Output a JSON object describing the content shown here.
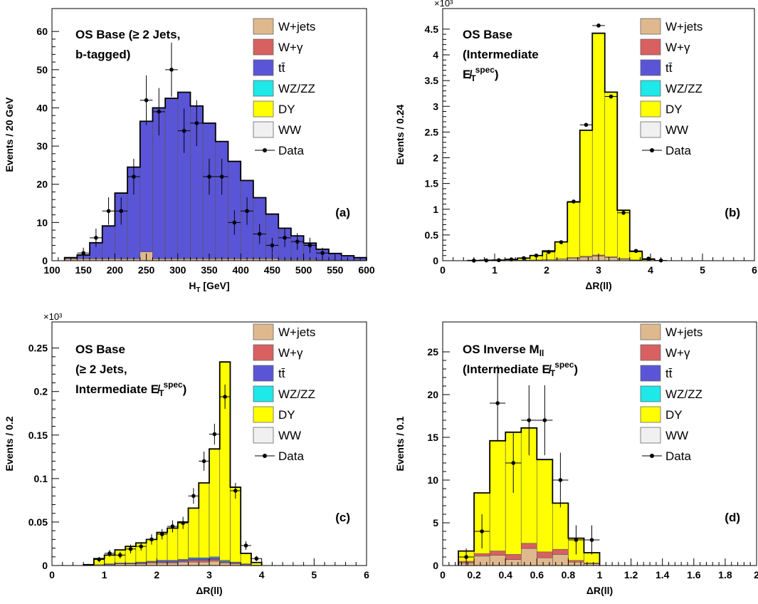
{
  "legend": [
    {
      "key": "wjets",
      "label": "W+jets",
      "color": "#dfb98d"
    },
    {
      "key": "wgamma",
      "label": "W+γ",
      "color": "#d96060"
    },
    {
      "key": "ttbar",
      "label": "tt̄",
      "color": "#5a55d6"
    },
    {
      "key": "wzzz",
      "label": "WZ/ZZ",
      "color": "#1ee8e8"
    },
    {
      "key": "dy",
      "label": "DY",
      "color": "#ffff00"
    },
    {
      "key": "ww",
      "label": "WW",
      "color": "#f0f0f0"
    },
    {
      "key": "data",
      "label": "Data",
      "color": "#000000"
    }
  ],
  "chart_data": [
    {
      "type": "histogram",
      "tag": "(a)",
      "title_lines": [
        "OS Base (≥ 2 Jets,",
        "b-tagged)"
      ],
      "xlabel": "H_T [GeV]",
      "ylabel": "Events / 20 GeV",
      "xlim": [
        100,
        600
      ],
      "ylim": [
        0,
        66
      ],
      "y_exponent": "",
      "xticks": [
        100,
        150,
        200,
        250,
        300,
        350,
        400,
        450,
        500,
        550,
        600
      ],
      "xtick_labels": [
        "100",
        "150",
        "200",
        "250",
        "300",
        "350",
        "400",
        "450",
        "500",
        "550",
        "600"
      ],
      "yticks": [
        0,
        10,
        20,
        30,
        40,
        50,
        60
      ],
      "ytick_labels": [
        "0",
        "10",
        "20",
        "30",
        "40",
        "50",
        "60"
      ],
      "bin_edges": [
        120,
        140,
        160,
        180,
        200,
        220,
        240,
        260,
        280,
        300,
        320,
        340,
        360,
        380,
        400,
        420,
        440,
        460,
        480,
        500,
        520,
        540,
        560,
        580,
        600
      ],
      "stack_order": [
        "wjets",
        "wgamma",
        "ttbar",
        "wzzz",
        "dy",
        "ww"
      ],
      "stacks": {
        "wjets": [
          0.5,
          0.5,
          0.5,
          0.5,
          0.5,
          0.5,
          2.3,
          0.5,
          0.5,
          0.5,
          0.5,
          0.5,
          0.5,
          0.5,
          0.5,
          0.5,
          0.5,
          0.3,
          0.3,
          0.3,
          0.2,
          0.2,
          0.1,
          0.1
        ],
        "wgamma": [
          0,
          0,
          0,
          0,
          0,
          0,
          0,
          0,
          0,
          0,
          0,
          0,
          0,
          0,
          0,
          0,
          0,
          0,
          0,
          0,
          0,
          0,
          0,
          0
        ],
        "ttbar": [
          0.3,
          1.0,
          4.2,
          8.6,
          17.2,
          24.0,
          34.2,
          39.5,
          42.0,
          43.6,
          40.0,
          35.5,
          30.7,
          25.5,
          20.5,
          16.0,
          11.7,
          8.2,
          6.2,
          4.3,
          2.8,
          1.7,
          1.2,
          0.7
        ],
        "wzzz": [
          0,
          0,
          0,
          0,
          0,
          0,
          0,
          0,
          0,
          0,
          0,
          0,
          0,
          0,
          0,
          0,
          0,
          0,
          0,
          0,
          0,
          0,
          0,
          0
        ],
        "dy": [
          0,
          0,
          0,
          0,
          0,
          0,
          0,
          0,
          0,
          0,
          0,
          0,
          0,
          0,
          0,
          0,
          0,
          0,
          0,
          0,
          0,
          0,
          0,
          0
        ],
        "ww": [
          0,
          0,
          0,
          0,
          0,
          0,
          0,
          0,
          0,
          0,
          0,
          0,
          0,
          0,
          0,
          0,
          0,
          0,
          0,
          0,
          0,
          0,
          0,
          0
        ]
      },
      "data_points": {
        "x": [
          150,
          170,
          190,
          210,
          230,
          250,
          270,
          290,
          310,
          330,
          350,
          370,
          390,
          410,
          430,
          450,
          470,
          490,
          510,
          530
        ],
        "y": [
          2,
          6,
          13,
          13,
          22,
          42,
          39,
          50,
          34,
          36,
          22,
          22,
          10,
          13,
          7,
          4,
          6,
          5,
          4,
          2
        ],
        "yerr": [
          1.4,
          2.4,
          3.6,
          3.6,
          4.7,
          6.5,
          6.2,
          7.1,
          5.8,
          6.0,
          4.7,
          4.7,
          3.2,
          3.6,
          2.6,
          2.0,
          2.4,
          2.2,
          2.0,
          1.4
        ]
      }
    },
    {
      "type": "histogram",
      "tag": "(b)",
      "title_lines": [
        "OS Base",
        "(Intermediate",
        "E̸_T^spec)"
      ],
      "xlabel": "ΔR(ll)",
      "ylabel": "Events / 0.24",
      "xlim": [
        0,
        6
      ],
      "ylim": [
        0,
        4.9
      ],
      "y_exponent": "×10³",
      "xticks": [
        0,
        1,
        2,
        3,
        4,
        5,
        6
      ],
      "xtick_labels": [
        "0",
        "1",
        "2",
        "3",
        "4",
        "5",
        "6"
      ],
      "yticks": [
        0,
        0.5,
        1,
        1.5,
        2,
        2.5,
        3,
        3.5,
        4,
        4.5
      ],
      "ytick_labels": [
        "0",
        "0.5",
        "1",
        "1.5",
        "2",
        "2.5",
        "3",
        "3.5",
        "4",
        "4.5"
      ],
      "bin_edges": [
        0.48,
        0.72,
        0.96,
        1.2,
        1.44,
        1.68,
        1.92,
        2.16,
        2.4,
        2.64,
        2.88,
        3.12,
        3.36,
        3.6,
        3.84,
        4.08
      ],
      "stack_order": [
        "wjets",
        "wgamma",
        "ttbar",
        "wzzz",
        "dy",
        "ww"
      ],
      "stacks": {
        "wjets": [
          0,
          0,
          0,
          0.005,
          0.01,
          0.015,
          0.02,
          0.03,
          0.05,
          0.07,
          0.09,
          0.06,
          0.03,
          0.01,
          0
        ],
        "wgamma": [
          0,
          0,
          0,
          0,
          0,
          0,
          0,
          0.005,
          0.01,
          0.015,
          0.02,
          0.015,
          0.01,
          0.005,
          0
        ],
        "ttbar": [
          0,
          0,
          0,
          0,
          0,
          0,
          0,
          0,
          0,
          0,
          0,
          0,
          0,
          0,
          0
        ],
        "wzzz": [
          0,
          0,
          0,
          0,
          0,
          0,
          0,
          0,
          0,
          0,
          0,
          0,
          0,
          0,
          0
        ],
        "dy": [
          0.003,
          0.008,
          0.012,
          0.02,
          0.04,
          0.085,
          0.17,
          0.33,
          1.08,
          2.45,
          4.31,
          3.2,
          0.94,
          0.165,
          0.028
        ],
        "ww": [
          0,
          0,
          0,
          0,
          0,
          0,
          0,
          0,
          0,
          0,
          0,
          0,
          0,
          0,
          0
        ]
      },
      "data_points": {
        "x": [
          0.6,
          0.84,
          1.08,
          1.32,
          1.56,
          1.8,
          2.04,
          2.28,
          2.52,
          2.76,
          3.0,
          3.24,
          3.48,
          3.72,
          3.96,
          4.2
        ],
        "y": [
          0.002,
          0.005,
          0.01,
          0.025,
          0.05,
          0.1,
          0.17,
          0.36,
          1.15,
          2.64,
          4.57,
          3.19,
          0.93,
          0.19,
          0.04,
          0.005
        ],
        "yerr": [
          0,
          0,
          0,
          0,
          0,
          0,
          0,
          0,
          0,
          0,
          0,
          0,
          0,
          0,
          0,
          0
        ]
      }
    },
    {
      "type": "histogram",
      "tag": "(c)",
      "title_lines": [
        "OS Base",
        "(≥ 2 Jets,",
        "Intermediate E̸_T^spec)"
      ],
      "xlabel": "ΔR(ll)",
      "ylabel": "Events / 0.2",
      "xlim": [
        0,
        6
      ],
      "ylim": [
        0,
        0.28
      ],
      "y_exponent": "×10³",
      "xticks": [
        0,
        1,
        2,
        3,
        4,
        5,
        6
      ],
      "xtick_labels": [
        "0",
        "1",
        "2",
        "3",
        "4",
        "5",
        "6"
      ],
      "yticks": [
        0,
        0.05,
        0.1,
        0.15,
        0.2,
        0.25
      ],
      "ytick_labels": [
        "0",
        "0.05",
        "0.1",
        "0.15",
        "0.2",
        "0.25"
      ],
      "bin_edges": [
        0.6,
        0.8,
        1.0,
        1.2,
        1.4,
        1.6,
        1.8,
        2.0,
        2.2,
        2.4,
        2.6,
        2.8,
        3.0,
        3.2,
        3.4,
        3.6,
        3.8,
        4.0
      ],
      "stack_order": [
        "wjets",
        "wgamma",
        "ttbar",
        "wzzz",
        "dy",
        "ww"
      ],
      "stacks": {
        "wjets": [
          0,
          0.001,
          0.001,
          0.002,
          0.002,
          0.002,
          0.003,
          0.003,
          0.003,
          0.004,
          0.004,
          0.004,
          0.005,
          0.003,
          0.002,
          0.001,
          0.0005
        ],
        "wgamma": [
          0,
          0,
          0,
          0,
          0,
          0.001,
          0.001,
          0.001,
          0.001,
          0.001,
          0.002,
          0.002,
          0.002,
          0.001,
          0.001,
          0,
          0
        ],
        "ttbar": [
          0,
          0,
          0.001,
          0.001,
          0.001,
          0.001,
          0.001,
          0.002,
          0.002,
          0.002,
          0.002,
          0.002,
          0.002,
          0.001,
          0.001,
          0.001,
          0
        ],
        "wzzz": [
          0,
          0,
          0,
          0,
          0,
          0,
          0,
          0,
          0,
          0,
          0.001,
          0.001,
          0.001,
          0.001,
          0,
          0,
          0
        ],
        "dy": [
          0.001,
          0.007,
          0.01,
          0.015,
          0.019,
          0.022,
          0.025,
          0.032,
          0.037,
          0.043,
          0.057,
          0.086,
          0.124,
          0.228,
          0.086,
          0.012,
          0.003
        ],
        "ww": [
          0,
          0,
          0,
          0,
          0,
          0,
          0,
          0,
          0,
          0,
          0,
          0,
          0,
          0,
          0,
          0,
          0
        ]
      },
      "data_points": {
        "x": [
          0.9,
          1.1,
          1.3,
          1.5,
          1.7,
          1.9,
          2.1,
          2.3,
          2.5,
          2.7,
          2.9,
          3.1,
          3.3,
          3.5,
          3.7,
          3.9
        ],
        "y": [
          0.007,
          0.014,
          0.012,
          0.019,
          0.022,
          0.03,
          0.036,
          0.045,
          0.049,
          0.08,
          0.12,
          0.151,
          0.194,
          0.086,
          0.023,
          0.008
        ],
        "yerr": [
          0.003,
          0.004,
          0.004,
          0.005,
          0.005,
          0.006,
          0.006,
          0.007,
          0.007,
          0.009,
          0.011,
          0.012,
          0.014,
          0.009,
          0.005,
          0.003
        ]
      }
    },
    {
      "type": "histogram",
      "tag": "(d)",
      "title_lines": [
        "OS Inverse M_ll",
        "(Intermediate E̸_T^spec)"
      ],
      "xlabel": "ΔR(ll)",
      "ylabel": "Events / 0.1",
      "xlim": [
        0,
        2
      ],
      "ylim": [
        0,
        28.5
      ],
      "y_exponent": "",
      "xticks": [
        0,
        0.2,
        0.4,
        0.6,
        0.8,
        1,
        1.2,
        1.4,
        1.6,
        1.8,
        2
      ],
      "xtick_labels": [
        "0",
        "0.2",
        "0.4",
        "0.6",
        "0.8",
        "1",
        "1.2",
        "1.4",
        "1.6",
        "1.8",
        "2"
      ],
      "yticks": [
        0,
        5,
        10,
        15,
        20,
        25
      ],
      "ytick_labels": [
        "0",
        "5",
        "10",
        "15",
        "20",
        "25"
      ],
      "bin_edges": [
        0.1,
        0.2,
        0.3,
        0.4,
        0.5,
        0.6,
        0.7,
        0.8,
        0.9,
        1.0
      ],
      "stack_order": [
        "wjets",
        "wgamma",
        "ttbar",
        "wzzz",
        "dy",
        "ww"
      ],
      "stacks": {
        "wjets": [
          0.3,
          1.1,
          1.2,
          0.7,
          2.0,
          0.9,
          1.3,
          0.4,
          0.2
        ],
        "wgamma": [
          0.2,
          0.3,
          0.5,
          0.6,
          0.6,
          0.7,
          0.6,
          0.2,
          0.1
        ],
        "ttbar": [
          0,
          0,
          0,
          0,
          0,
          0,
          0,
          0,
          0
        ],
        "wzzz": [
          0,
          0,
          0,
          0,
          0,
          0,
          0,
          0,
          0
        ],
        "dy": [
          1.2,
          7.1,
          12.9,
          14.3,
          13.5,
          10.8,
          5.4,
          2.6,
          1.2
        ],
        "ww": [
          0,
          0,
          0,
          0,
          0,
          0,
          0,
          0,
          0
        ]
      },
      "data_points": {
        "x": [
          0.15,
          0.25,
          0.35,
          0.45,
          0.55,
          0.65,
          0.75,
          0.85,
          0.95
        ],
        "y": [
          1,
          4,
          19,
          12,
          17,
          17,
          10,
          3,
          3
        ],
        "yerr": [
          1.0,
          2.0,
          4.4,
          3.5,
          4.1,
          4.1,
          3.2,
          1.7,
          1.7
        ]
      }
    }
  ]
}
